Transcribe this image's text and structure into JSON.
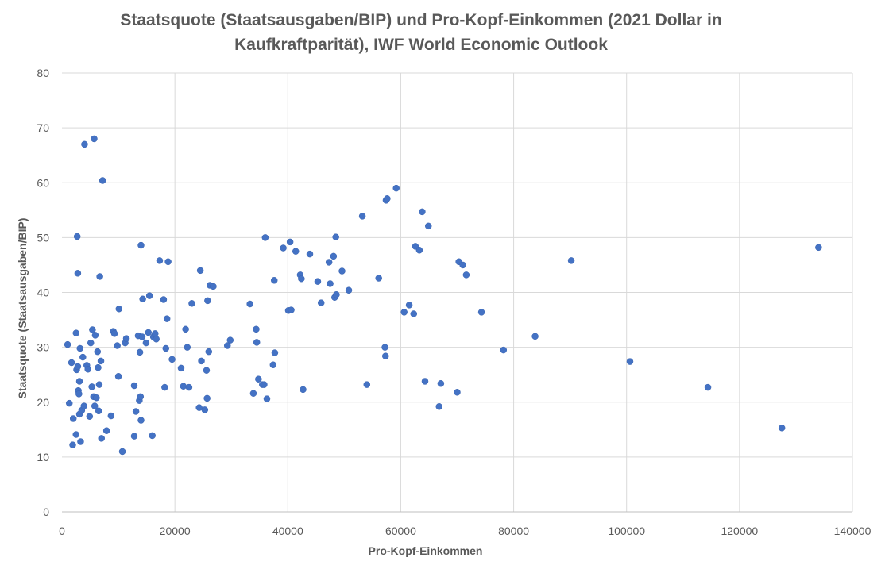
{
  "chart_data": {
    "type": "scatter",
    "title_line1": "Staatsquote (Staatsausgaben/BIP) und Pro-Kopf-Einkommen (2021 Dollar in",
    "title_line2": "Kaufkraftparität), IWF World Economic Outlook",
    "xlabel": "Pro-Kopf-Einkommen",
    "ylabel": "Staatsquote (Staatsausgaben/BIP)",
    "xlim": [
      0,
      140000
    ],
    "ylim": [
      0,
      80
    ],
    "x_ticks": [
      "0",
      "20000",
      "40000",
      "60000",
      "80000",
      "100000",
      "120000",
      "140000"
    ],
    "y_ticks": [
      "0",
      "10",
      "20",
      "30",
      "40",
      "50",
      "60",
      "70",
      "80"
    ],
    "grid": true,
    "marker_color": "#4472C4",
    "points": [
      [
        1000,
        30.5
      ],
      [
        1300,
        19.8
      ],
      [
        1700,
        27.2
      ],
      [
        1900,
        12.2
      ],
      [
        2000,
        17.0
      ],
      [
        2500,
        32.6
      ],
      [
        2500,
        14.1
      ],
      [
        2600,
        25.9
      ],
      [
        2700,
        50.2
      ],
      [
        2800,
        43.5
      ],
      [
        2800,
        26.5
      ],
      [
        2900,
        22.1
      ],
      [
        3000,
        21.5
      ],
      [
        3100,
        23.8
      ],
      [
        3100,
        17.8
      ],
      [
        3200,
        29.8
      ],
      [
        3300,
        12.8
      ],
      [
        3500,
        18.5
      ],
      [
        3700,
        28.2
      ],
      [
        3900,
        19.3
      ],
      [
        4000,
        67.0
      ],
      [
        4400,
        26.7
      ],
      [
        4600,
        26.0
      ],
      [
        4900,
        17.4
      ],
      [
        5100,
        30.8
      ],
      [
        5300,
        22.8
      ],
      [
        5400,
        33.2
      ],
      [
        5600,
        21.0
      ],
      [
        5700,
        68.0
      ],
      [
        5800,
        19.3
      ],
      [
        5900,
        32.2
      ],
      [
        6100,
        20.8
      ],
      [
        6300,
        29.2
      ],
      [
        6400,
        26.3
      ],
      [
        6500,
        18.4
      ],
      [
        6600,
        23.2
      ],
      [
        6700,
        42.9
      ],
      [
        6900,
        27.5
      ],
      [
        7000,
        13.4
      ],
      [
        7200,
        60.4
      ],
      [
        7900,
        14.8
      ],
      [
        8700,
        17.5
      ],
      [
        9100,
        32.9
      ],
      [
        9300,
        32.5
      ],
      [
        9800,
        30.3
      ],
      [
        10000,
        24.7
      ],
      [
        10100,
        37.0
      ],
      [
        10700,
        11.0
      ],
      [
        11200,
        30.8
      ],
      [
        11400,
        31.6
      ],
      [
        12800,
        13.8
      ],
      [
        12800,
        23.0
      ],
      [
        13100,
        18.3
      ],
      [
        13500,
        32.1
      ],
      [
        13700,
        20.3
      ],
      [
        13800,
        29.1
      ],
      [
        13900,
        21.0
      ],
      [
        14000,
        16.7
      ],
      [
        14000,
        48.6
      ],
      [
        14200,
        31.9
      ],
      [
        14300,
        38.8
      ],
      [
        14900,
        30.8
      ],
      [
        15300,
        32.7
      ],
      [
        15500,
        39.4
      ],
      [
        16000,
        13.9
      ],
      [
        16200,
        31.9
      ],
      [
        16500,
        32.5
      ],
      [
        16700,
        31.5
      ],
      [
        17300,
        45.8
      ],
      [
        18000,
        38.7
      ],
      [
        18200,
        22.7
      ],
      [
        18400,
        29.8
      ],
      [
        18600,
        35.2
      ],
      [
        18800,
        45.6
      ],
      [
        19500,
        27.8
      ],
      [
        21100,
        26.2
      ],
      [
        21500,
        22.9
      ],
      [
        21900,
        33.3
      ],
      [
        22200,
        30.0
      ],
      [
        22500,
        22.7
      ],
      [
        23000,
        38.0
      ],
      [
        24300,
        19.0
      ],
      [
        24500,
        44.0
      ],
      [
        24700,
        27.5
      ],
      [
        25300,
        18.6
      ],
      [
        25600,
        25.8
      ],
      [
        25700,
        20.7
      ],
      [
        25800,
        38.5
      ],
      [
        26000,
        29.2
      ],
      [
        26200,
        41.3
      ],
      [
        26800,
        41.1
      ],
      [
        29300,
        30.3
      ],
      [
        29800,
        31.3
      ],
      [
        33300,
        37.9
      ],
      [
        33900,
        21.6
      ],
      [
        34400,
        33.3
      ],
      [
        34500,
        30.9
      ],
      [
        34800,
        24.2
      ],
      [
        35500,
        23.2
      ],
      [
        35800,
        23.2
      ],
      [
        36000,
        50.0
      ],
      [
        36300,
        20.6
      ],
      [
        37400,
        26.8
      ],
      [
        37600,
        42.2
      ],
      [
        37700,
        29.0
      ],
      [
        39200,
        48.1
      ],
      [
        40100,
        36.7
      ],
      [
        40400,
        49.2
      ],
      [
        40600,
        36.8
      ],
      [
        41400,
        47.5
      ],
      [
        42200,
        43.2
      ],
      [
        42400,
        42.5
      ],
      [
        42700,
        22.3
      ],
      [
        43900,
        47.0
      ],
      [
        45300,
        42.0
      ],
      [
        45900,
        38.1
      ],
      [
        47300,
        45.5
      ],
      [
        47500,
        41.6
      ],
      [
        48100,
        46.6
      ],
      [
        48300,
        39.1
      ],
      [
        48500,
        50.1
      ],
      [
        48600,
        39.6
      ],
      [
        49600,
        43.9
      ],
      [
        50800,
        40.4
      ],
      [
        53200,
        53.9
      ],
      [
        54000,
        23.2
      ],
      [
        56100,
        42.6
      ],
      [
        57200,
        30.0
      ],
      [
        57300,
        28.4
      ],
      [
        57400,
        56.8
      ],
      [
        57600,
        57.1
      ],
      [
        59200,
        59.0
      ],
      [
        60600,
        36.4
      ],
      [
        61500,
        37.7
      ],
      [
        62300,
        36.1
      ],
      [
        62600,
        48.4
      ],
      [
        63300,
        47.7
      ],
      [
        63800,
        54.7
      ],
      [
        64300,
        23.8
      ],
      [
        64900,
        52.1
      ],
      [
        66800,
        19.2
      ],
      [
        67100,
        23.4
      ],
      [
        70000,
        21.8
      ],
      [
        70300,
        45.6
      ],
      [
        71000,
        45.0
      ],
      [
        71600,
        43.2
      ],
      [
        74300,
        36.4
      ],
      [
        78200,
        29.5
      ],
      [
        83800,
        32.0
      ],
      [
        90200,
        45.8
      ],
      [
        100600,
        27.4
      ],
      [
        114400,
        22.7
      ],
      [
        127500,
        15.3
      ],
      [
        134000,
        48.2
      ]
    ]
  }
}
